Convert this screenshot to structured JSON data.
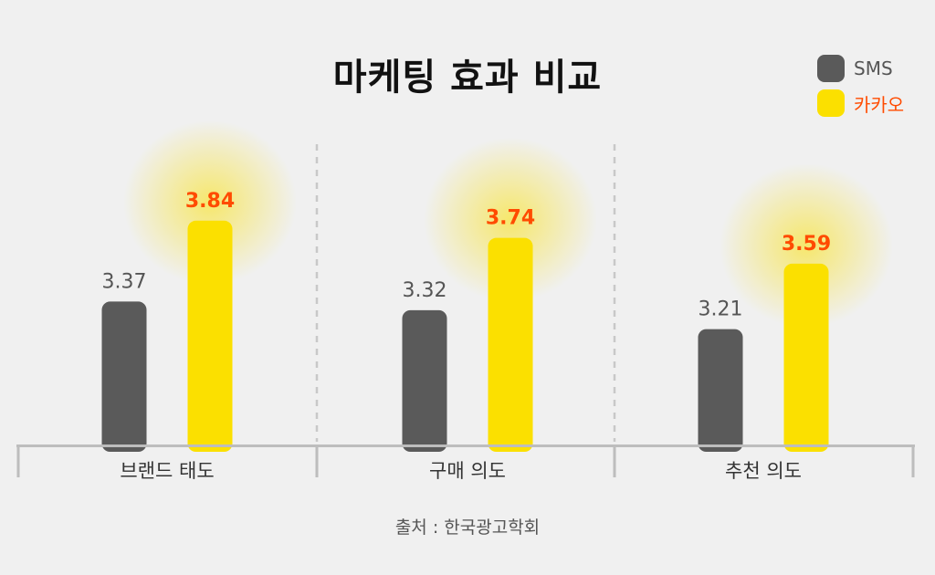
{
  "colors": {
    "sms": "#5a5a5a",
    "kakao": "#fbe000",
    "kakao_label": "#ff4b00",
    "sms_label": "#555555",
    "background": "#f0f0f0",
    "axis": "#bdbdbd"
  },
  "chart_data": {
    "type": "bar",
    "title": "마케팅 효과 비교",
    "categories": [
      "브랜드 태도",
      "구매 의도",
      "추천 의도"
    ],
    "series": [
      {
        "name": "SMS",
        "values": [
          3.37,
          3.32,
          3.21
        ],
        "value_labels": [
          "3.37",
          "3.32",
          "3.21"
        ]
      },
      {
        "name": "카카오",
        "values": [
          3.84,
          3.74,
          3.59
        ],
        "value_labels": [
          "3.84",
          "3.74",
          "3.59"
        ]
      }
    ],
    "legend_position": "top-right",
    "grid": false,
    "category_separators": "dashed"
  },
  "source_text": "출처 : 한국광고학회"
}
